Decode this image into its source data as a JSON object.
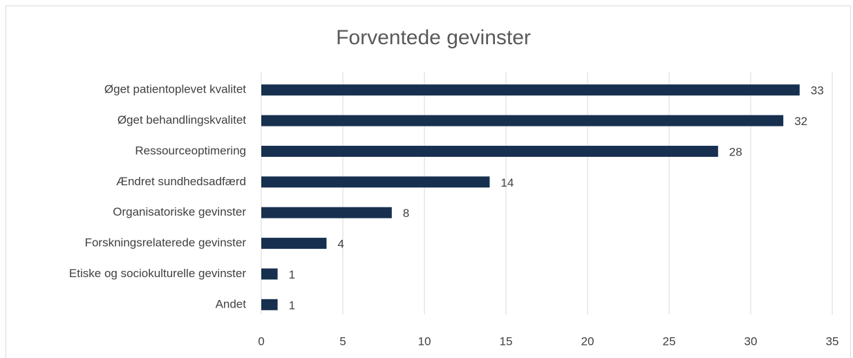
{
  "chart_data": {
    "type": "bar",
    "orientation": "horizontal",
    "title": "Forventede gevinster",
    "categories": [
      "Øget patientoplevet kvalitet",
      "Øget behandlingskvalitet",
      "Ressourceoptimering",
      "Ændret sundhedsadfærd",
      "Organisatoriske gevinster",
      "Forskningsrelaterede gevinster",
      "Etiske og sociokulturelle gevinster",
      "Andet"
    ],
    "values": [
      33,
      32,
      28,
      14,
      8,
      4,
      1,
      1
    ],
    "color": "#17304f",
    "xlim": [
      0,
      35
    ],
    "xticks": [
      0,
      5,
      10,
      15,
      20,
      25,
      30,
      35
    ],
    "grid": true
  }
}
